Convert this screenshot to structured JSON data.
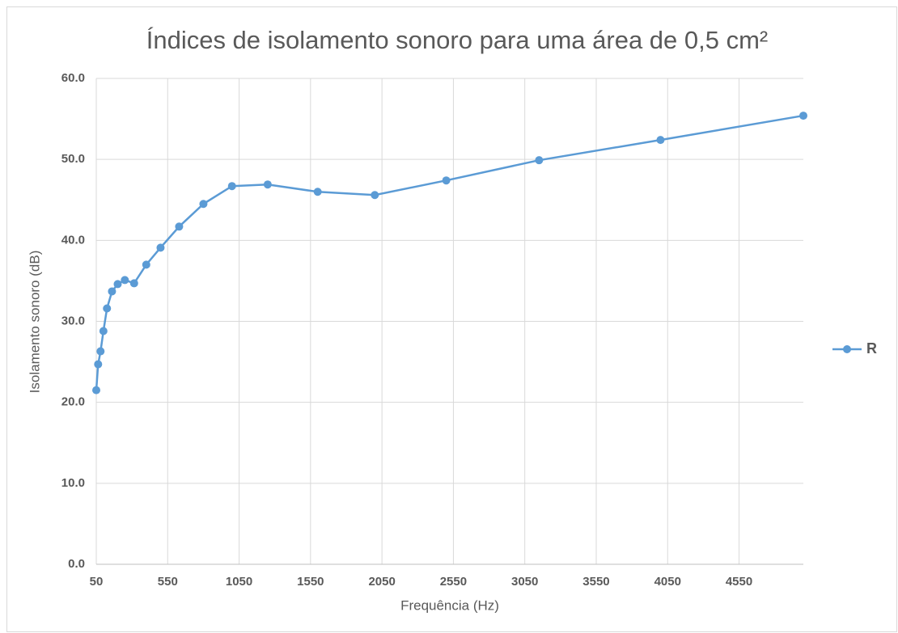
{
  "chart_data": {
    "type": "line",
    "title": "Índices de isolamento sonoro para uma área de 0,5 cm²",
    "x_label": "Frequência (Hz)",
    "y_label": "Isolamento sonoro (dB)",
    "x": [
      50,
      63,
      80,
      100,
      125,
      160,
      200,
      250,
      315,
      400,
      500,
      630,
      800,
      1000,
      1250,
      1600,
      2000,
      2500,
      3150,
      4000,
      5000
    ],
    "series": [
      {
        "name": "R",
        "color": "#5b9bd5",
        "values": [
          21.5,
          24.7,
          26.3,
          28.8,
          31.6,
          33.7,
          34.6,
          35.1,
          34.7,
          37.0,
          39.1,
          41.7,
          44.5,
          46.7,
          46.9,
          46.0,
          45.6,
          47.4,
          49.9,
          52.4,
          55.4
        ]
      }
    ],
    "xlim": [
      50,
      5000
    ],
    "xticks": [
      50,
      550,
      1050,
      1550,
      2050,
      2550,
      3050,
      3550,
      4050,
      4550
    ],
    "ylim": [
      0,
      60
    ],
    "yticks": [
      {
        "value": 0,
        "label": "0.0"
      },
      {
        "value": 10,
        "label": "10.0"
      },
      {
        "value": 20,
        "label": "20.0"
      },
      {
        "value": 30,
        "label": "30.0"
      },
      {
        "value": 40,
        "label": "40.0"
      },
      {
        "value": 50,
        "label": "50.0"
      },
      {
        "value": 60,
        "label": "60.0"
      }
    ],
    "grid": true,
    "legend": "right"
  }
}
